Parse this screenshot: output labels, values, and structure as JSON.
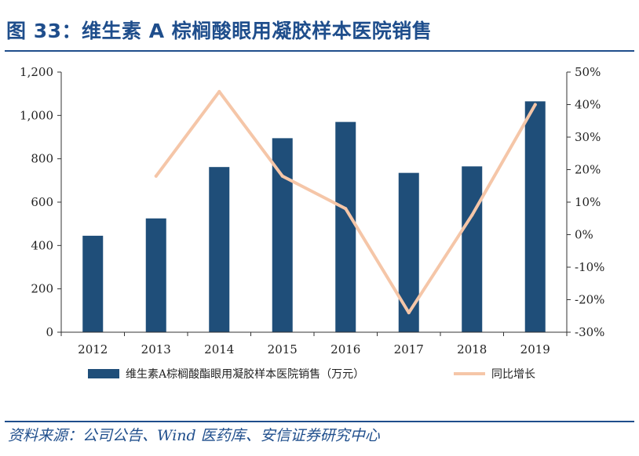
{
  "figure": {
    "title": "图 33：维生素 A 棕榈酸眼用凝胶样本医院销售",
    "source": "资料来源：公司公告、Wind 医药库、安信证券研究中心"
  },
  "colors": {
    "accent": "#1f4e8c",
    "bar": "#1f4e79",
    "line": "#f5c6a8"
  },
  "chart_data": {
    "type": "bar",
    "categories": [
      "2012",
      "2013",
      "2014",
      "2015",
      "2016",
      "2017",
      "2018",
      "2019"
    ],
    "series": [
      {
        "name": "维生素A棕榈酸酯眼用凝胶样本医院销售（万元）",
        "type": "bar",
        "axis": "left",
        "values": [
          445,
          525,
          762,
          895,
          970,
          735,
          765,
          1065
        ]
      },
      {
        "name": "同比增长",
        "type": "line",
        "axis": "right",
        "values": [
          null,
          18,
          44,
          18,
          8,
          -24,
          6,
          40
        ]
      }
    ],
    "y_left": {
      "min": 0,
      "max": 1200,
      "ticks": [
        0,
        200,
        400,
        600,
        800,
        1000,
        1200
      ],
      "tick_labels": [
        "0",
        "200",
        "400",
        "600",
        "800",
        "1,000",
        "1,200"
      ]
    },
    "y_right": {
      "min": -30,
      "max": 50,
      "ticks": [
        -30,
        -20,
        -10,
        0,
        10,
        20,
        30,
        40,
        50
      ],
      "tick_labels": [
        "-30%",
        "-20%",
        "-10%",
        "0%",
        "10%",
        "20%",
        "30%",
        "40%",
        "50%"
      ]
    },
    "grid": false,
    "legend_position": "bottom"
  }
}
